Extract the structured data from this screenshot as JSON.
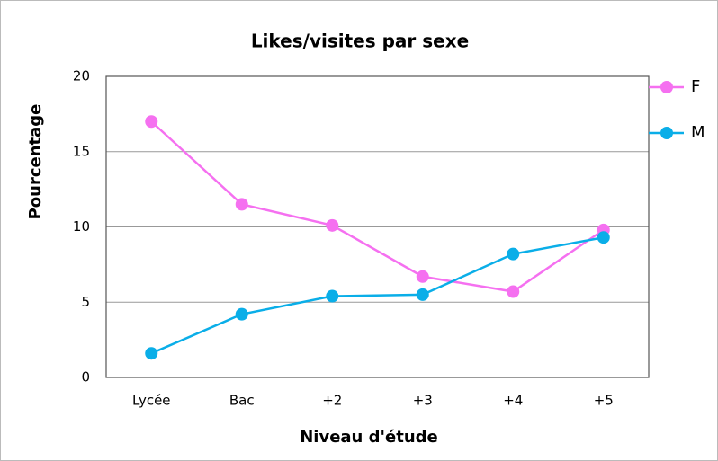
{
  "chart_data": {
    "type": "line",
    "title": "Likes/visites par sexe",
    "x_label": "Niveau d'étude",
    "y_label": "Pourcentage",
    "categories": [
      "Lycée",
      "Bac",
      "+2",
      "+3",
      "+4",
      "+5"
    ],
    "series": [
      {
        "name": "F",
        "color": "#f570f0",
        "values": [
          17,
          11.5,
          10.1,
          6.7,
          5.7,
          9.8
        ]
      },
      {
        "name": "M",
        "color": "#0aaee8",
        "values": [
          1.6,
          4.2,
          5.4,
          5.5,
          8.2,
          9.3
        ]
      }
    ],
    "ylim": [
      0,
      20
    ],
    "yticks": [
      0,
      5,
      10,
      15,
      20
    ],
    "grid": true,
    "legend": "right"
  }
}
